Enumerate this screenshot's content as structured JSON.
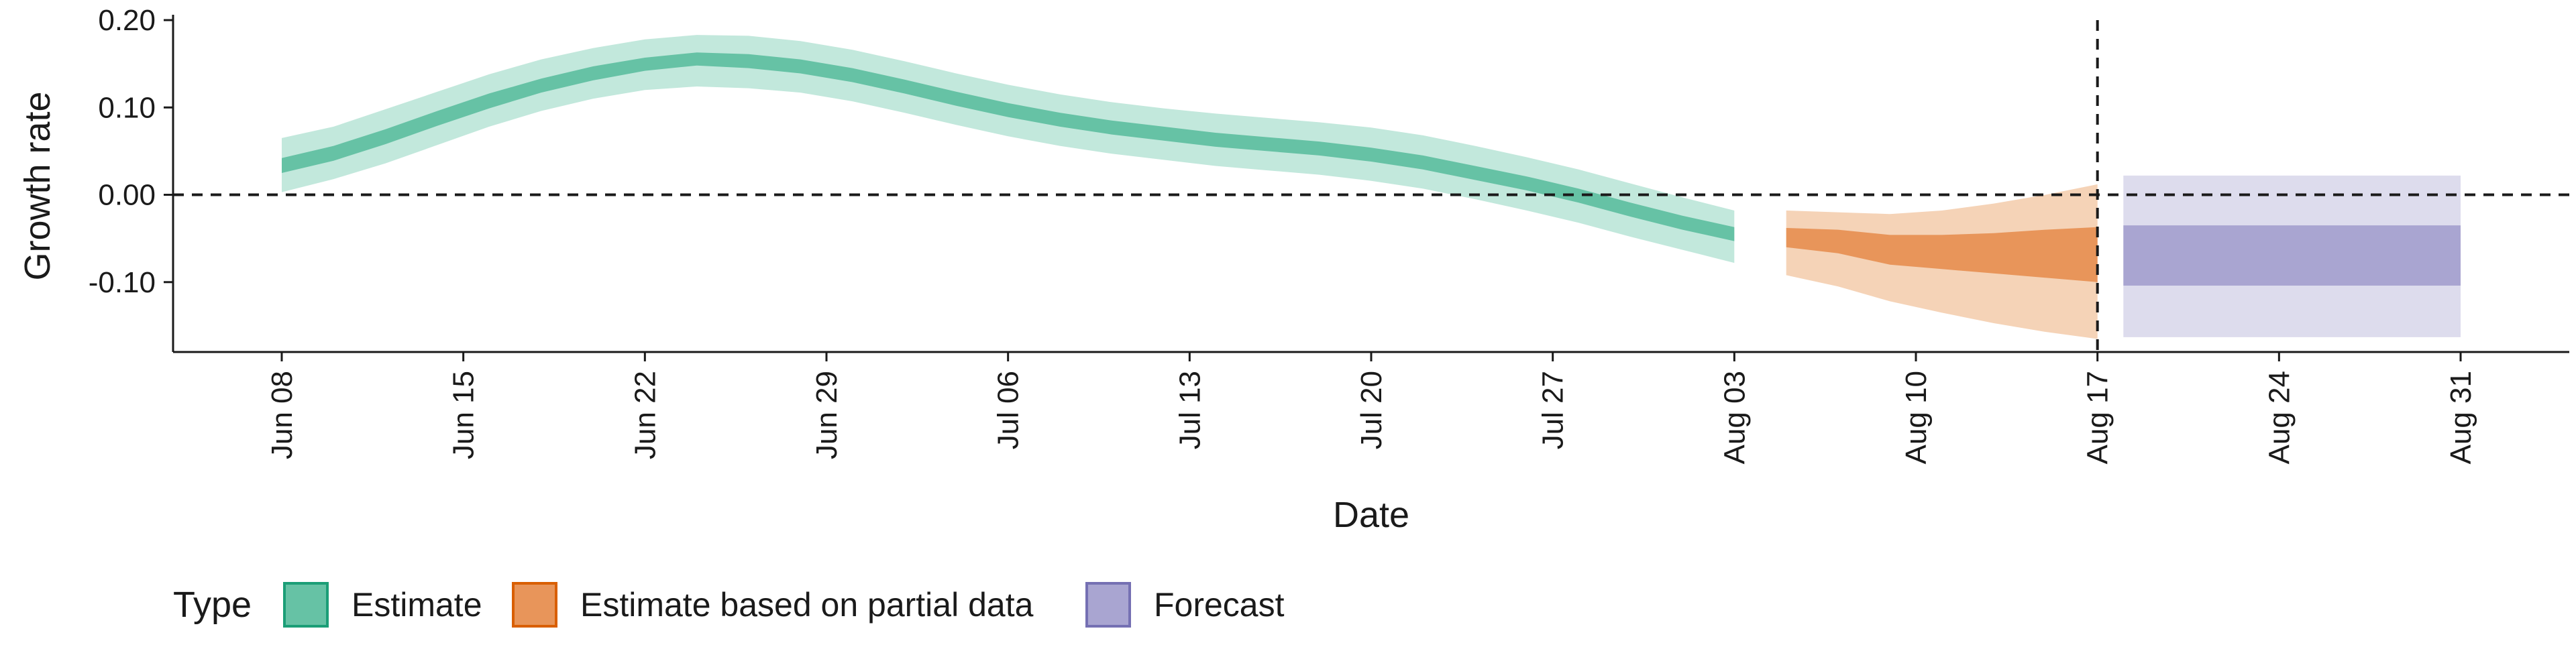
{
  "chart_data": {
    "type": "area",
    "xlabel": "Date",
    "ylabel": "Growth rate",
    "ylim": [
      -0.18,
      0.2
    ],
    "xlim": [
      "2020-06-08",
      "2020-08-31"
    ],
    "y_ticks": [
      {
        "value": 0.2,
        "label": "0.20"
      },
      {
        "value": 0.1,
        "label": "0.10"
      },
      {
        "value": 0.0,
        "label": "0.00"
      },
      {
        "value": -0.1,
        "label": "-0.10"
      }
    ],
    "x_ticks": [
      {
        "date": "2020-06-08",
        "label": "Jun 08"
      },
      {
        "date": "2020-06-15",
        "label": "Jun 15"
      },
      {
        "date": "2020-06-22",
        "label": "Jun 22"
      },
      {
        "date": "2020-06-29",
        "label": "Jun 29"
      },
      {
        "date": "2020-07-06",
        "label": "Jul 06"
      },
      {
        "date": "2020-07-13",
        "label": "Jul 13"
      },
      {
        "date": "2020-07-20",
        "label": "Jul 20"
      },
      {
        "date": "2020-07-27",
        "label": "Jul 27"
      },
      {
        "date": "2020-08-03",
        "label": "Aug 03"
      },
      {
        "date": "2020-08-10",
        "label": "Aug 10"
      },
      {
        "date": "2020-08-17",
        "label": "Aug 17"
      },
      {
        "date": "2020-08-24",
        "label": "Aug 24"
      },
      {
        "date": "2020-08-31",
        "label": "Aug 31"
      }
    ],
    "hline": {
      "y": 0.0,
      "style": "dashed"
    },
    "vline": {
      "date": "2020-08-17",
      "style": "dashed"
    },
    "legend": {
      "title": "Type",
      "placement": "bottom",
      "entries": [
        {
          "label": "Estimate",
          "color": "#66c2a5",
          "border": "#1b9e77"
        },
        {
          "label": "Estimate based on partial data",
          "color": "#e8955a",
          "border": "#d95f02"
        },
        {
          "label": "Forecast",
          "color": "#a9a5d1",
          "border": "#7570b3"
        }
      ]
    },
    "series": [
      {
        "name": "Estimate",
        "colors": {
          "inner": "#66c2a5",
          "outer": "#c2e8dc"
        },
        "x": [
          "2020-06-08",
          "2020-06-10",
          "2020-06-12",
          "2020-06-14",
          "2020-06-16",
          "2020-06-18",
          "2020-06-20",
          "2020-06-22",
          "2020-06-24",
          "2020-06-26",
          "2020-06-28",
          "2020-06-30",
          "2020-07-02",
          "2020-07-04",
          "2020-07-06",
          "2020-07-08",
          "2020-07-10",
          "2020-07-12",
          "2020-07-14",
          "2020-07-16",
          "2020-07-18",
          "2020-07-20",
          "2020-07-22",
          "2020-07-24",
          "2020-07-26",
          "2020-07-28",
          "2020-07-30",
          "2020-08-01",
          "2020-08-03"
        ],
        "outer_upper": [
          0.065,
          0.078,
          0.098,
          0.118,
          0.138,
          0.155,
          0.168,
          0.178,
          0.183,
          0.182,
          0.176,
          0.166,
          0.153,
          0.139,
          0.126,
          0.115,
          0.106,
          0.099,
          0.093,
          0.088,
          0.083,
          0.077,
          0.068,
          0.056,
          0.043,
          0.029,
          0.013,
          -0.003,
          -0.018
        ],
        "inner_upper": [
          0.042,
          0.056,
          0.075,
          0.096,
          0.116,
          0.133,
          0.147,
          0.157,
          0.163,
          0.161,
          0.155,
          0.145,
          0.132,
          0.118,
          0.105,
          0.094,
          0.085,
          0.078,
          0.071,
          0.066,
          0.061,
          0.054,
          0.045,
          0.033,
          0.021,
          0.007,
          -0.009,
          -0.024,
          -0.037
        ],
        "median": [
          0.035,
          0.048,
          0.067,
          0.088,
          0.108,
          0.125,
          0.139,
          0.15,
          0.156,
          0.153,
          0.147,
          0.137,
          0.124,
          0.11,
          0.097,
          0.086,
          0.077,
          0.07,
          0.063,
          0.058,
          0.053,
          0.046,
          0.037,
          0.025,
          0.013,
          -0.001,
          -0.017,
          -0.032,
          -0.044
        ],
        "inner_lower": [
          0.025,
          0.039,
          0.058,
          0.079,
          0.099,
          0.117,
          0.131,
          0.142,
          0.148,
          0.145,
          0.139,
          0.129,
          0.116,
          0.102,
          0.089,
          0.078,
          0.069,
          0.062,
          0.055,
          0.05,
          0.045,
          0.038,
          0.029,
          0.017,
          0.005,
          -0.009,
          -0.025,
          -0.04,
          -0.053
        ],
        "outer_lower": [
          0.003,
          0.018,
          0.036,
          0.057,
          0.078,
          0.096,
          0.11,
          0.12,
          0.124,
          0.122,
          0.117,
          0.107,
          0.094,
          0.08,
          0.067,
          0.056,
          0.047,
          0.04,
          0.033,
          0.028,
          0.023,
          0.016,
          0.007,
          -0.005,
          -0.018,
          -0.032,
          -0.048,
          -0.063,
          -0.078
        ]
      },
      {
        "name": "Estimate based on partial data",
        "colors": {
          "inner": "#e8955a",
          "outer": "#f5d3b7"
        },
        "x": [
          "2020-08-05",
          "2020-08-07",
          "2020-08-09",
          "2020-08-11",
          "2020-08-13",
          "2020-08-15",
          "2020-08-17"
        ],
        "outer_upper": [
          -0.018,
          -0.02,
          -0.022,
          -0.018,
          -0.01,
          0.0,
          0.012
        ],
        "inner_upper": [
          -0.038,
          -0.04,
          -0.046,
          -0.046,
          -0.044,
          -0.04,
          -0.037
        ],
        "median": [
          -0.048,
          -0.052,
          -0.06,
          -0.062,
          -0.062,
          -0.061,
          -0.06
        ],
        "inner_lower": [
          -0.06,
          -0.067,
          -0.08,
          -0.085,
          -0.09,
          -0.095,
          -0.1
        ],
        "outer_lower": [
          -0.092,
          -0.105,
          -0.122,
          -0.135,
          -0.147,
          -0.157,
          -0.165
        ]
      },
      {
        "name": "Forecast",
        "colors": {
          "inner": "#a9a5d1",
          "outer": "#dddced"
        },
        "x": [
          "2020-08-18",
          "2020-08-31"
        ],
        "outer_upper": [
          0.022,
          0.022
        ],
        "inner_upper": [
          -0.035,
          -0.035
        ],
        "median": [
          -0.07,
          -0.07
        ],
        "inner_lower": [
          -0.104,
          -0.104
        ],
        "outer_lower": [
          -0.163,
          -0.163
        ]
      }
    ]
  }
}
